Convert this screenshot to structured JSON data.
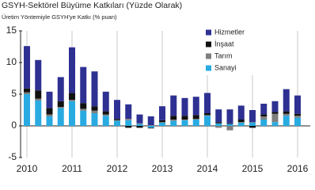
{
  "chart_data": {
    "type": "stacked_bar",
    "title": "GSYH-Sektörel Büyüme Katkıları (Yüzde Olarak)",
    "subtitle": "Üretim Yöntemiyle GSYH'ye Katkı (% puan)",
    "categories": [
      "2010",
      null,
      null,
      null,
      "2011",
      null,
      null,
      null,
      "2012",
      null,
      null,
      null,
      "2013",
      null,
      null,
      null,
      "2014",
      null,
      null,
      null,
      "2015",
      null,
      null,
      null,
      "2016"
    ],
    "series": [
      {
        "name": "Sanayi",
        "color": "#29abe2",
        "values": [
          5.0,
          4.0,
          1.5,
          2.8,
          3.9,
          2.4,
          2.0,
          1.6,
          0.8,
          0.9,
          0.3,
          -0.3,
          0.5,
          0.8,
          0.9,
          1.0,
          1.6,
          0.4,
          0.3,
          0.5,
          0.5,
          1.0,
          0.6,
          1.6,
          1.3
        ]
      },
      {
        "name": "Tarım",
        "color": "#7f7f7f",
        "values": [
          0.3,
          0.3,
          0.3,
          0.2,
          0.2,
          0.3,
          0.4,
          0.2,
          0.1,
          0.2,
          0.1,
          0.1,
          0.1,
          0.2,
          0.1,
          0.1,
          0.1,
          -0.3,
          -0.7,
          0.1,
          0.1,
          0.5,
          1.3,
          0.3,
          0.3
        ]
      },
      {
        "name": "İnşaat",
        "color": "#111111",
        "values": [
          0.6,
          1.3,
          1.0,
          0.9,
          1.1,
          0.9,
          0.7,
          0.5,
          0.2,
          -0.3,
          -0.3,
          -0.1,
          0.3,
          0.6,
          0.6,
          0.6,
          0.3,
          0.2,
          0.1,
          0.4,
          -0.3,
          0.3,
          0.3,
          0.4,
          0.3
        ]
      },
      {
        "name": "Hizmetler",
        "color": "#2e3192",
        "values": [
          6.7,
          4.8,
          2.6,
          3.8,
          7.2,
          5.7,
          5.5,
          3.1,
          3.0,
          2.3,
          1.4,
          1.4,
          2.2,
          3.2,
          2.8,
          2.9,
          3.2,
          2.0,
          2.2,
          2.2,
          1.9,
          1.7,
          1.7,
          3.5,
          2.9
        ]
      }
    ],
    "ylim": [
      -5,
      15
    ],
    "yticks": [
      -5,
      0,
      5,
      10,
      15
    ],
    "legend": "upper right"
  }
}
